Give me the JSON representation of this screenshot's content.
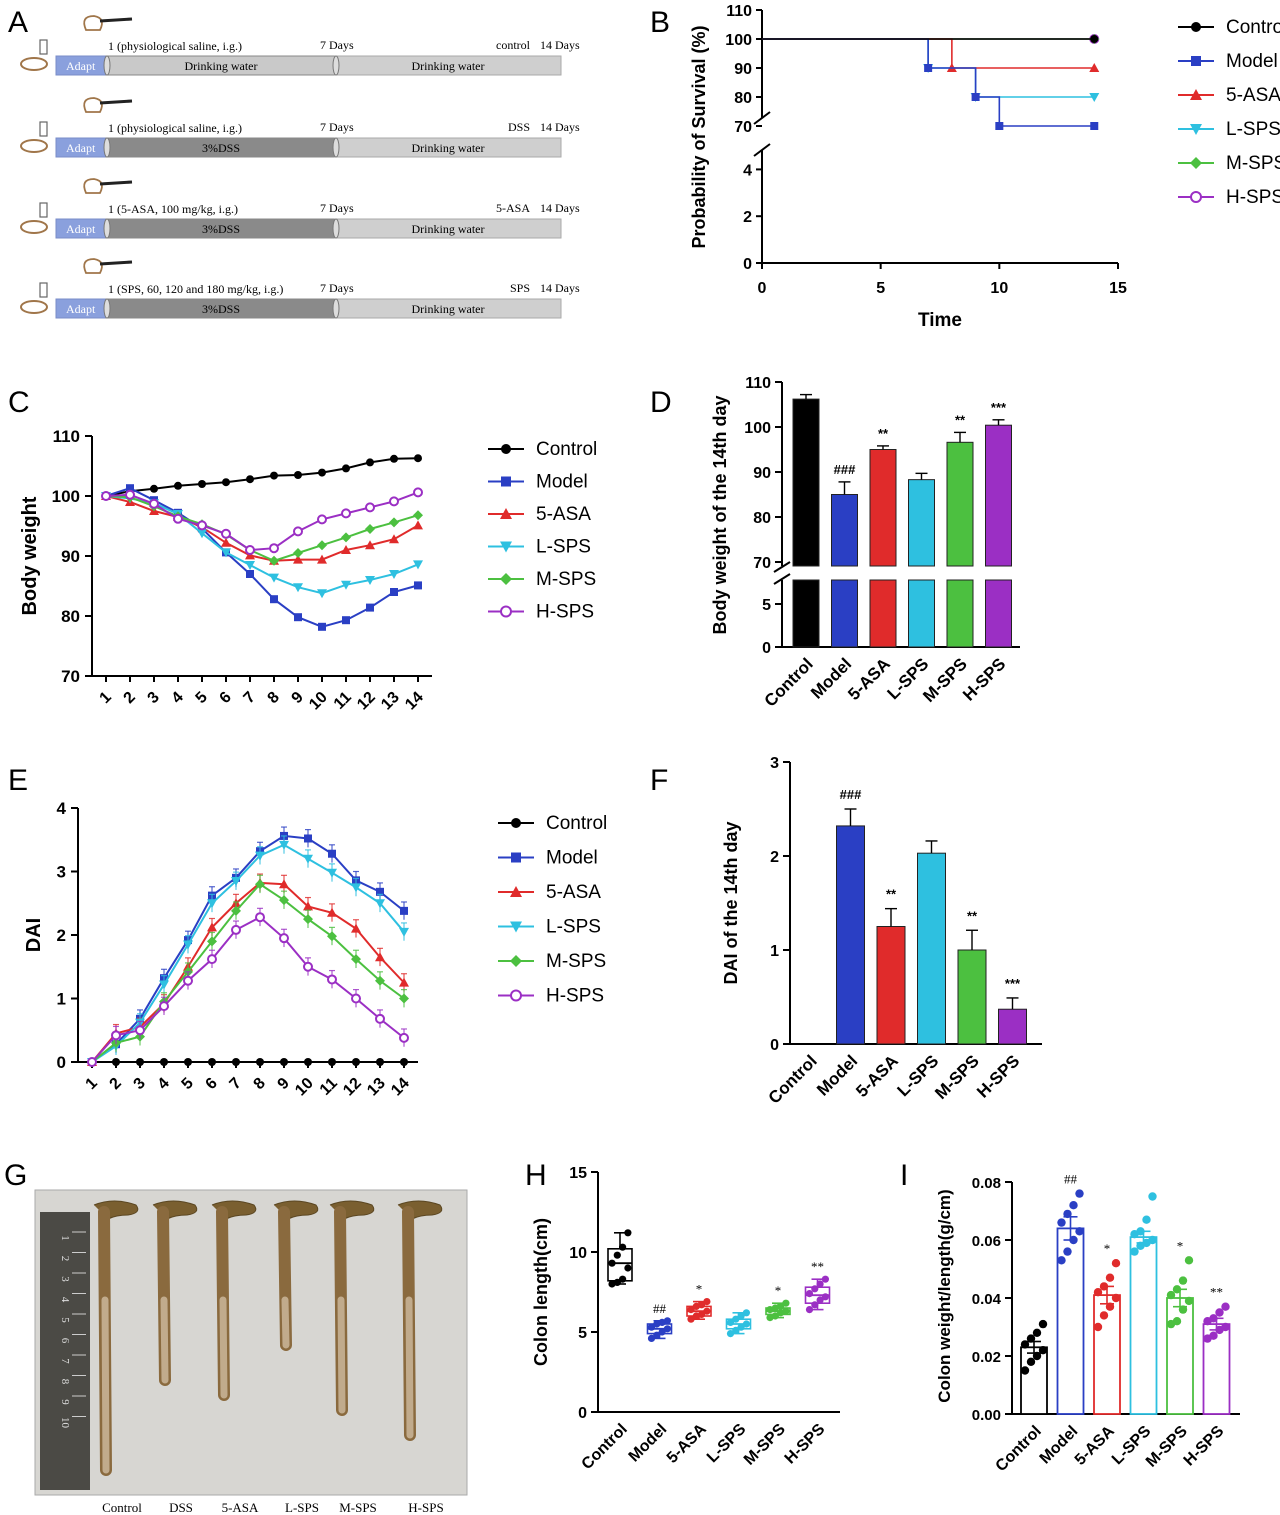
{
  "colors": {
    "control": "#000000",
    "model": "#2a3fc4",
    "asa": "#e02b2b",
    "lsps": "#2ec0e0",
    "msps": "#4cc040",
    "hsps": "#9b2fc4"
  },
  "panel_letters": {
    "a": "A",
    "b": "B",
    "c": "C",
    "d": "D",
    "e": "E",
    "f": "F",
    "g": "G",
    "h": "H",
    "i": "I"
  },
  "panel_a": {
    "rows": [
      {
        "dose_label": "1 (physiological saline, i.g.)",
        "day7": "7 Days",
        "group_tag": "control",
        "day14": "14 Days",
        "adapt": "Adapt",
        "phase1": "Drinking water",
        "phase2": "Drinking water"
      },
      {
        "dose_label": "1 (physiological saline, i.g.)",
        "day7": "7 Days",
        "group_tag": "DSS",
        "day14": "14 Days",
        "adapt": "Adapt",
        "phase1": "3%DSS",
        "phase2": "Drinking water"
      },
      {
        "dose_label": "1 (5-ASA, 100 mg/kg, i.g.)",
        "day7": "7 Days",
        "group_tag": "5-ASA",
        "day14": "14 Days",
        "adapt": "Adapt",
        "phase1": "3%DSS",
        "phase2": "Drinking water"
      },
      {
        "dose_label": "1 (SPS, 60, 120 and 180 mg/kg, i.g.)",
        "day7": "7 Days",
        "group_tag": "SPS",
        "day14": "14 Days",
        "adapt": "Adapt",
        "phase1": "3%DSS",
        "phase2": "Drinking water"
      }
    ]
  },
  "legend_labels": [
    "Control",
    "Model",
    "5-ASA",
    "L-SPS",
    "M-SPS",
    "H-SPS"
  ],
  "chart_data": [
    {
      "id": "B",
      "type": "line",
      "ylabel": "Probability of Survival (%)",
      "xlabel": "Time",
      "xlim": [
        0,
        15
      ],
      "x_ticks": [
        "0",
        "5",
        "10",
        "15"
      ],
      "y_ticks_upper": [
        "70",
        "80",
        "90",
        "100",
        "110"
      ],
      "y_ticks_lower": [
        "0",
        "2",
        "4"
      ],
      "series": [
        {
          "name": "Control",
          "steps": [
            [
              0,
              100
            ],
            [
              14,
              100
            ]
          ]
        },
        {
          "name": "Model",
          "steps": [
            [
              0,
              100
            ],
            [
              7,
              90
            ],
            [
              9,
              80
            ],
            [
              10,
              70
            ],
            [
              14,
              70
            ]
          ]
        },
        {
          "name": "5-ASA",
          "steps": [
            [
              0,
              100
            ],
            [
              8,
              90
            ],
            [
              14,
              90
            ]
          ]
        },
        {
          "name": "L-SPS",
          "steps": [
            [
              0,
              100
            ],
            [
              7,
              90
            ],
            [
              9,
              80
            ],
            [
              14,
              80
            ]
          ]
        },
        {
          "name": "M-SPS",
          "steps": [
            [
              0,
              100
            ],
            [
              14,
              100
            ]
          ]
        },
        {
          "name": "H-SPS",
          "steps": [
            [
              0,
              100
            ],
            [
              14,
              100
            ]
          ]
        }
      ]
    },
    {
      "id": "C",
      "type": "line",
      "ylabel": "Body weight",
      "ylim": [
        70,
        110
      ],
      "y_ticks": [
        "70",
        "80",
        "90",
        "100",
        "110"
      ],
      "categories": [
        "1",
        "2",
        "3",
        "4",
        "5",
        "6",
        "7",
        "8",
        "9",
        "10",
        "11",
        "12",
        "13",
        "14"
      ],
      "series": [
        {
          "name": "Control",
          "values": [
            100,
            100.8,
            101.2,
            101.7,
            102.0,
            102.3,
            102.8,
            103.4,
            103.5,
            103.9,
            104.6,
            105.6,
            106.2,
            106.3
          ]
        },
        {
          "name": "Model",
          "values": [
            100,
            101.3,
            99.3,
            97.2,
            94.6,
            90.6,
            87.0,
            82.8,
            79.8,
            78.2,
            79.3,
            81.4,
            84.0,
            85.1
          ]
        },
        {
          "name": "5-ASA",
          "values": [
            100,
            99.0,
            97.5,
            96.5,
            94.8,
            92.2,
            90.1,
            89.2,
            89.4,
            89.4,
            91.0,
            91.8,
            92.8,
            95.1
          ]
        },
        {
          "name": "L-SPS",
          "values": [
            100,
            99.6,
            98.8,
            97.0,
            93.8,
            90.6,
            88.5,
            86.4,
            84.8,
            83.8,
            85.2,
            86.0,
            87.0,
            88.6
          ]
        },
        {
          "name": "M-SPS",
          "values": [
            100,
            99.8,
            98.3,
            96.6,
            95.3,
            93.6,
            91.0,
            89.2,
            90.5,
            91.8,
            93.1,
            94.5,
            95.6,
            96.8
          ]
        },
        {
          "name": "H-SPS",
          "values": [
            100,
            100.2,
            98.7,
            96.2,
            95.1,
            93.7,
            91.0,
            91.3,
            94.1,
            96.1,
            97.1,
            98.1,
            99.1,
            100.6
          ]
        }
      ]
    },
    {
      "id": "D",
      "type": "bar",
      "ylabel": "Body weight of the 14th day",
      "categories": [
        "Control",
        "Model",
        "5-ASA",
        "L-SPS",
        "M-SPS",
        "H-SPS"
      ],
      "values": [
        106.2,
        85.0,
        95.0,
        88.3,
        96.6,
        100.4
      ],
      "errors": [
        1.0,
        2.8,
        0.8,
        1.4,
        2.2,
        1.2
      ],
      "annotations": [
        "",
        "###",
        "**",
        "",
        "**",
        "***"
      ],
      "y_ticks_upper": [
        "70",
        "80",
        "90",
        "100",
        "110"
      ],
      "y_ticks_lower": [
        "0",
        "5"
      ]
    },
    {
      "id": "E",
      "type": "line",
      "ylabel": "DAI",
      "ylim": [
        0,
        4
      ],
      "y_ticks": [
        "0",
        "1",
        "2",
        "3",
        "4"
      ],
      "categories": [
        "1",
        "2",
        "3",
        "4",
        "5",
        "6",
        "7",
        "8",
        "9",
        "10",
        "11",
        "12",
        "13",
        "14"
      ],
      "series": [
        {
          "name": "Control",
          "values": [
            0,
            0,
            0,
            0,
            0,
            0,
            0,
            0,
            0,
            0,
            0,
            0,
            0,
            0
          ]
        },
        {
          "name": "Model",
          "values": [
            0,
            0.28,
            0.68,
            1.32,
            1.92,
            2.62,
            2.9,
            3.32,
            3.56,
            3.52,
            3.28,
            2.86,
            2.68,
            2.38
          ]
        },
        {
          "name": "5-ASA",
          "values": [
            0,
            0.45,
            0.55,
            0.92,
            1.5,
            2.12,
            2.5,
            2.82,
            2.8,
            2.45,
            2.35,
            2.1,
            1.65,
            1.25
          ]
        },
        {
          "name": "L-SPS",
          "values": [
            0,
            0.25,
            0.62,
            1.22,
            1.85,
            2.5,
            2.85,
            3.25,
            3.42,
            3.2,
            2.98,
            2.75,
            2.5,
            2.05
          ]
        },
        {
          "name": "M-SPS",
          "values": [
            0,
            0.3,
            0.4,
            0.95,
            1.42,
            1.9,
            2.38,
            2.8,
            2.55,
            2.25,
            1.98,
            1.62,
            1.28,
            1.0
          ]
        },
        {
          "name": "H-SPS",
          "values": [
            0,
            0.42,
            0.5,
            0.88,
            1.28,
            1.62,
            2.08,
            2.28,
            1.95,
            1.5,
            1.3,
            1.0,
            0.68,
            0.38
          ]
        }
      ]
    },
    {
      "id": "F",
      "type": "bar",
      "ylabel": "DAI of the 14th day",
      "ylim": [
        0,
        3
      ],
      "y_ticks": [
        "0",
        "1",
        "2",
        "3"
      ],
      "categories": [
        "Control",
        "Model",
        "5-ASA",
        "L-SPS",
        "M-SPS",
        "H-SPS"
      ],
      "values": [
        0,
        2.32,
        1.25,
        2.03,
        1.0,
        0.37
      ],
      "errors": [
        0,
        0.18,
        0.19,
        0.13,
        0.21,
        0.12
      ],
      "annotations": [
        "",
        "###",
        "**",
        "",
        "**",
        "***"
      ]
    },
    {
      "id": "H",
      "type": "box",
      "ylabel": "Colon length(cm)",
      "ylim": [
        0,
        15
      ],
      "y_ticks": [
        "0",
        "5",
        "10",
        "15"
      ],
      "categories": [
        "Control",
        "Model",
        "5-ASA",
        "L-SPS",
        "M-SPS",
        "H-SPS"
      ],
      "annotations": [
        "",
        "##",
        "*",
        "",
        "*",
        "**"
      ],
      "boxes": [
        {
          "min": 8.0,
          "q1": 8.2,
          "median": 9.3,
          "q3": 10.2,
          "max": 11.2,
          "points": [
            8.0,
            8.1,
            8.3,
            9.0,
            9.3,
            9.8,
            10.3,
            11.2
          ]
        },
        {
          "min": 4.6,
          "q1": 4.9,
          "median": 5.2,
          "q3": 5.5,
          "max": 5.7,
          "points": [
            4.6,
            4.8,
            5.0,
            5.2,
            5.3,
            5.5,
            5.6,
            5.7
          ]
        },
        {
          "min": 5.8,
          "q1": 6.0,
          "median": 6.3,
          "q3": 6.6,
          "max": 6.9,
          "points": [
            5.8,
            6.0,
            6.1,
            6.3,
            6.4,
            6.6,
            6.7,
            6.9
          ]
        },
        {
          "min": 4.9,
          "q1": 5.2,
          "median": 5.5,
          "q3": 5.8,
          "max": 6.2,
          "points": [
            4.9,
            5.1,
            5.3,
            5.5,
            5.6,
            5.8,
            6.0,
            6.2
          ]
        },
        {
          "min": 5.9,
          "q1": 6.1,
          "median": 6.3,
          "q3": 6.5,
          "max": 6.8,
          "points": [
            5.9,
            6.0,
            6.2,
            6.3,
            6.4,
            6.5,
            6.6,
            6.8
          ]
        },
        {
          "min": 6.4,
          "q1": 6.8,
          "median": 7.3,
          "q3": 7.8,
          "max": 8.3,
          "points": [
            6.4,
            6.7,
            7.0,
            7.2,
            7.4,
            7.7,
            8.0,
            8.3
          ]
        }
      ]
    },
    {
      "id": "I",
      "type": "bar",
      "ylabel": "Colon weight/length(g/cm)",
      "ylim": [
        0,
        0.08
      ],
      "y_ticks": [
        "0.00",
        "0.02",
        "0.04",
        "0.06",
        "0.08"
      ],
      "categories": [
        "Control",
        "Model",
        "5-ASA",
        "L-SPS",
        "M-SPS",
        "H-SPS"
      ],
      "values": [
        0.023,
        0.064,
        0.041,
        0.061,
        0.04,
        0.031
      ],
      "errors": [
        0.002,
        0.004,
        0.003,
        0.002,
        0.003,
        0.002
      ],
      "annotations": [
        "",
        "##",
        "*",
        "",
        "*",
        "**"
      ],
      "points": [
        [
          0.015,
          0.018,
          0.02,
          0.022,
          0.024,
          0.026,
          0.028,
          0.031
        ],
        [
          0.053,
          0.056,
          0.06,
          0.063,
          0.066,
          0.069,
          0.072,
          0.076
        ],
        [
          0.03,
          0.034,
          0.037,
          0.04,
          0.042,
          0.044,
          0.047,
          0.052
        ],
        [
          0.056,
          0.058,
          0.059,
          0.06,
          0.062,
          0.063,
          0.067,
          0.075
        ],
        [
          0.031,
          0.032,
          0.036,
          0.039,
          0.041,
          0.043,
          0.046,
          0.053
        ],
        [
          0.026,
          0.027,
          0.029,
          0.03,
          0.032,
          0.033,
          0.035,
          0.037
        ]
      ]
    }
  ],
  "panel_g": {
    "labels": [
      "Control",
      "DSS",
      "5-ASA",
      "L-SPS",
      "M-SPS",
      "H-SPS"
    ],
    "ruler_numbers": [
      "1",
      "2",
      "3",
      "4",
      "5",
      "6",
      "7",
      "8",
      "9",
      "10"
    ]
  }
}
